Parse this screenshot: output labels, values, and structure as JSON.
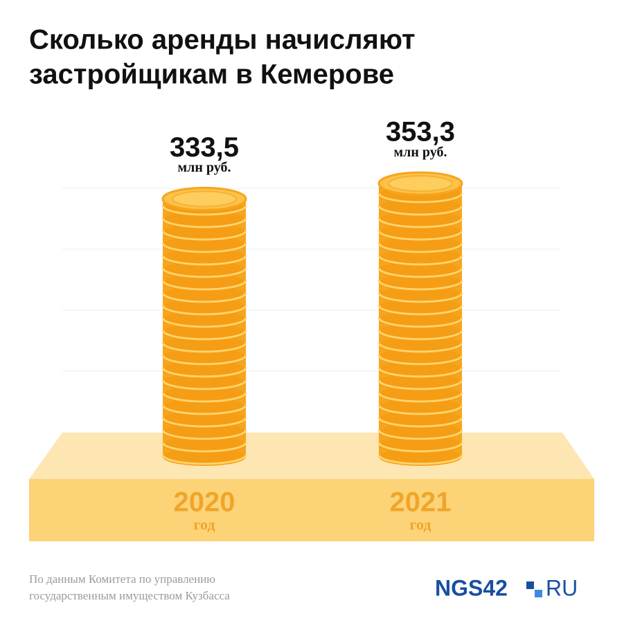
{
  "chart_data": {
    "type": "coin-bar",
    "title_lines": [
      "Сколько аренды начисляют",
      "застройщикам в Кемерове"
    ],
    "categories": [
      "2020",
      "2021"
    ],
    "category_unit": "год",
    "values": [
      333.5,
      353.3
    ],
    "value_labels": [
      "333,5",
      "353,3"
    ],
    "unit": "млн руб.",
    "color": "#f7a51d",
    "ylim": [
      0,
      400
    ],
    "source_lines": [
      "По данным Комитета по управлению",
      "государственным имуществом Кузбасса"
    ],
    "logo": [
      "NGS42",
      "RU"
    ]
  }
}
